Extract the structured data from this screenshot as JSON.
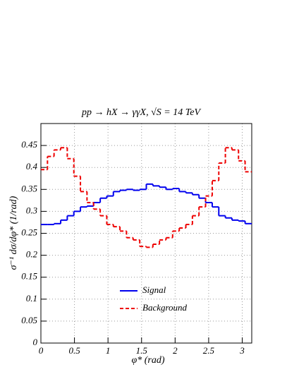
{
  "chart_data": {
    "type": "histogram",
    "title": "pp → hX → γγX, √S = 14 TeV",
    "x_label": "φ* (rad)",
    "y_label": "σ⁻¹ dσ/dφ* (1/rad)",
    "bins": [
      0,
      0.098,
      0.196,
      0.295,
      0.393,
      0.491,
      0.589,
      0.687,
      0.785,
      0.884,
      0.982,
      1.08,
      1.178,
      1.276,
      1.374,
      1.473,
      1.571,
      1.669,
      1.767,
      1.865,
      1.963,
      2.062,
      2.16,
      2.258,
      2.356,
      2.454,
      2.553,
      2.651,
      2.749,
      2.847,
      2.945,
      3.043,
      3.142
    ],
    "series": [
      {
        "name": "Signal",
        "color": "#0000ee",
        "style": "solid",
        "values": [
          0.27,
          0.27,
          0.272,
          0.28,
          0.29,
          0.3,
          0.31,
          0.312,
          0.32,
          0.33,
          0.335,
          0.345,
          0.348,
          0.35,
          0.348,
          0.35,
          0.362,
          0.358,
          0.355,
          0.35,
          0.352,
          0.345,
          0.342,
          0.338,
          0.33,
          0.32,
          0.31,
          0.29,
          0.285,
          0.28,
          0.278,
          0.272
        ]
      },
      {
        "name": "Background",
        "color": "#ee0000",
        "style": "dashed",
        "values": [
          0.395,
          0.425,
          0.44,
          0.445,
          0.42,
          0.38,
          0.345,
          0.32,
          0.305,
          0.29,
          0.27,
          0.265,
          0.255,
          0.24,
          0.235,
          0.22,
          0.218,
          0.225,
          0.235,
          0.24,
          0.255,
          0.262,
          0.27,
          0.29,
          0.31,
          0.335,
          0.37,
          0.41,
          0.445,
          0.44,
          0.415,
          0.39
        ]
      }
    ],
    "xlim": [
      0,
      3.142
    ],
    "ylim": [
      0,
      0.5
    ],
    "xticks": [
      0,
      0.5,
      1,
      1.5,
      2,
      2.5,
      3
    ],
    "yticks": [
      0,
      0.05,
      0.1,
      0.15,
      0.2,
      0.25,
      0.3,
      0.35,
      0.4,
      0.45
    ],
    "grid": true,
    "legend": "lower center"
  }
}
